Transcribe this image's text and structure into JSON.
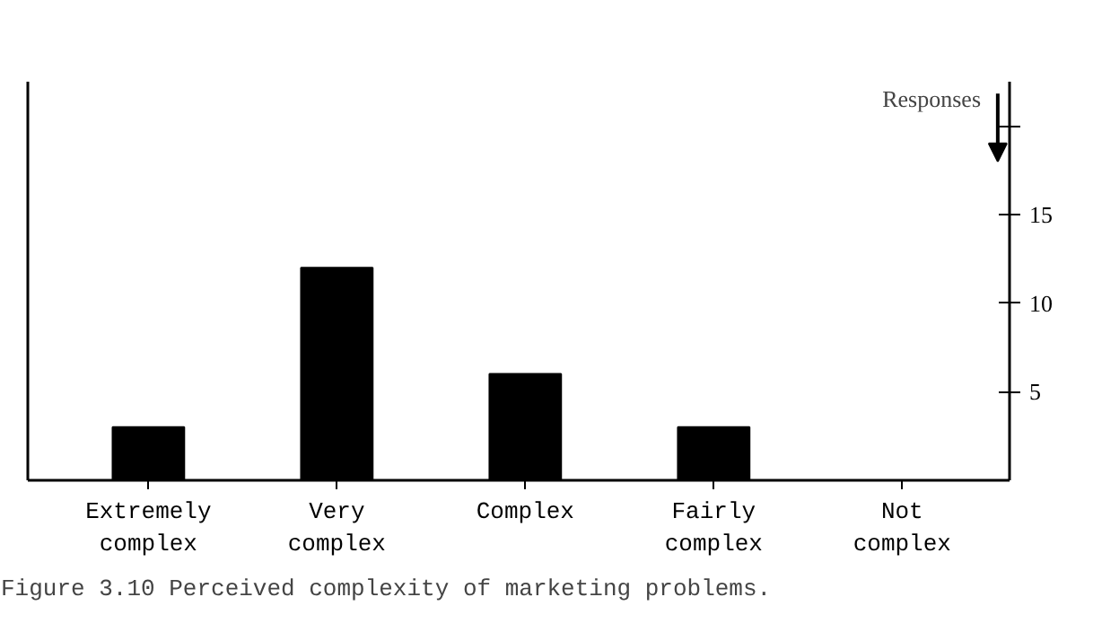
{
  "chart_data": {
    "type": "bar",
    "ylabel": "Responses",
    "categories": [
      "Extremely complex",
      "Very complex",
      "Complex",
      "Fairly complex",
      "Not complex"
    ],
    "values": [
      3,
      12,
      6,
      3,
      0
    ],
    "color": "#000000",
    "ylim": [
      0,
      22.5
    ],
    "yticks": [
      5,
      10,
      15,
      {
        "value": 20,
        "label": null
      }
    ],
    "grid": false,
    "annotations": [
      "Figure 3.10  Perceived complexity of marketing problems."
    ]
  }
}
